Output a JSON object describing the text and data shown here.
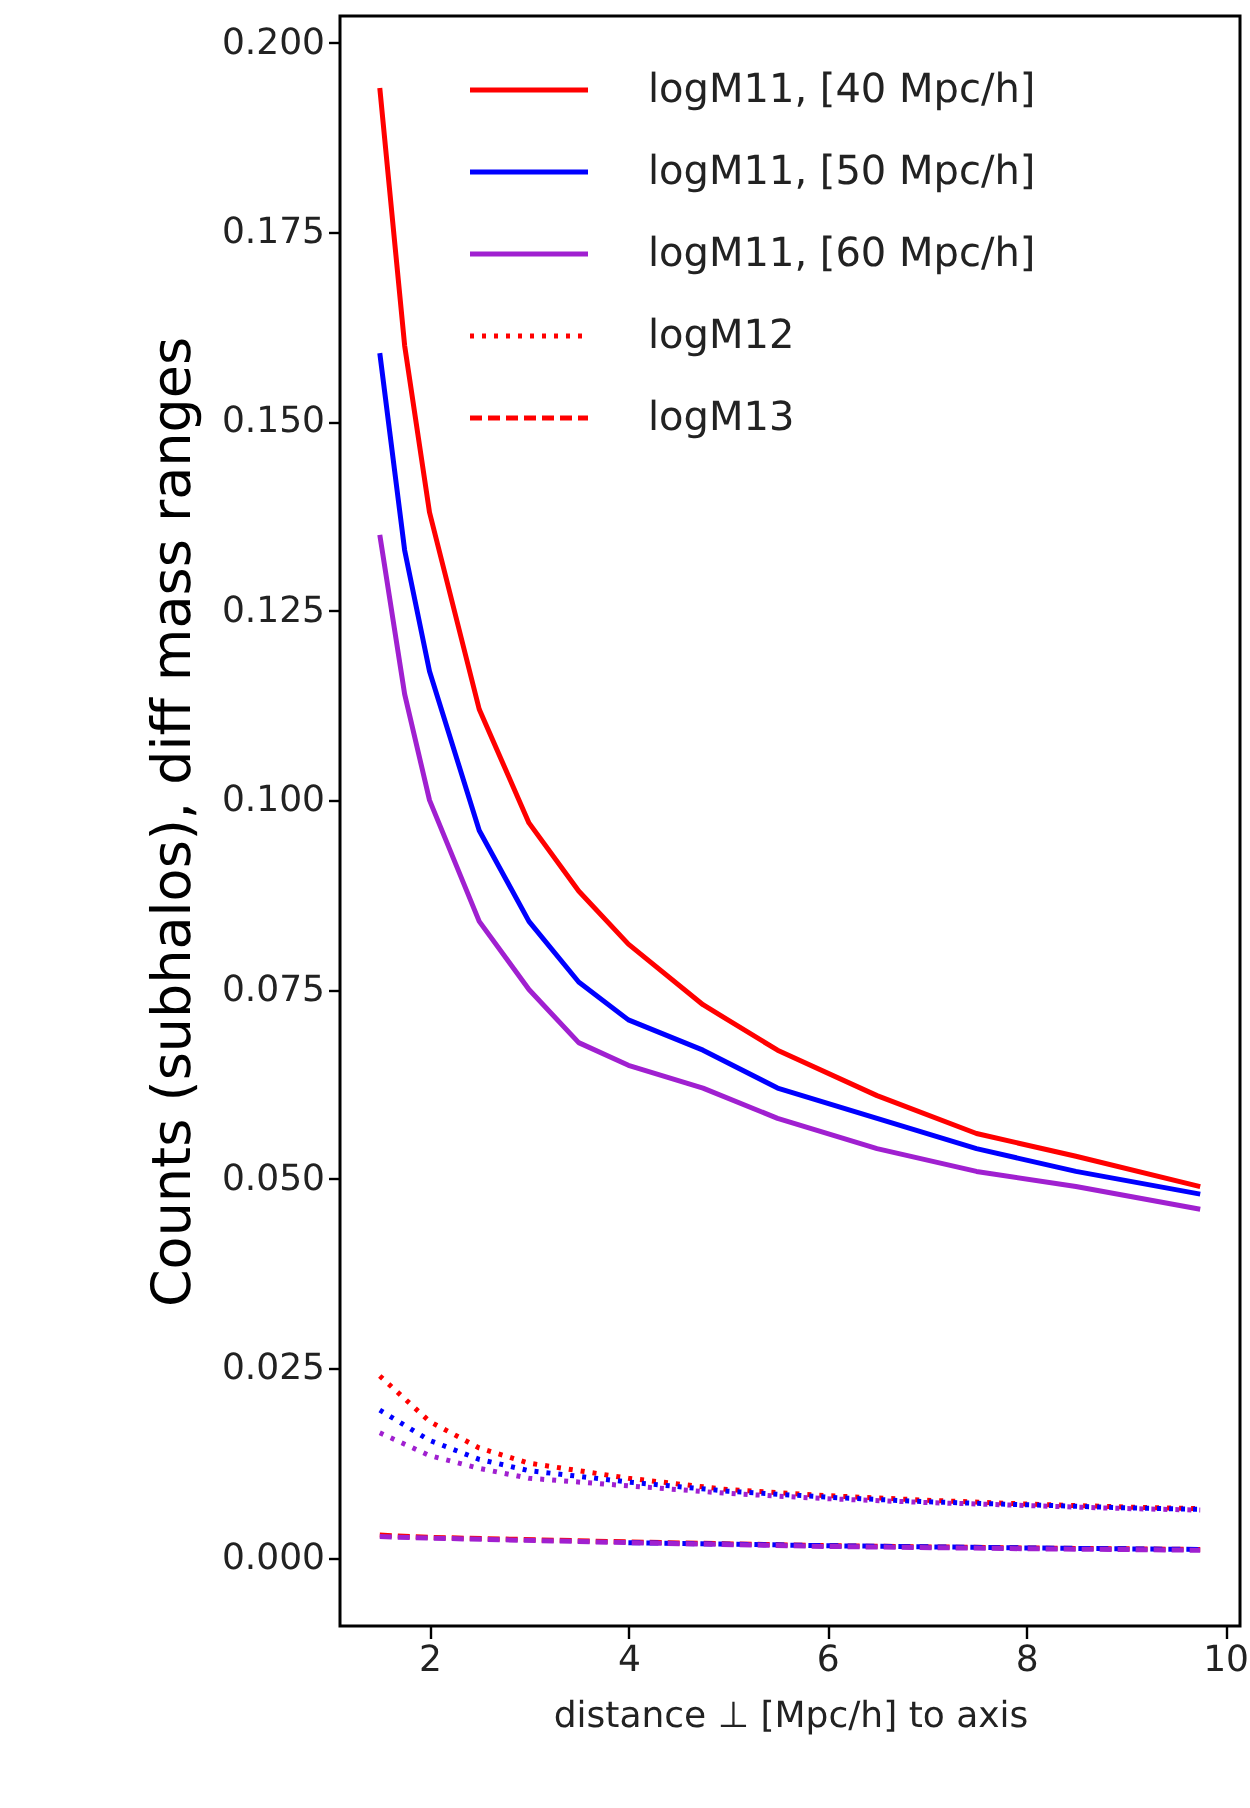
{
  "chart_data": {
    "type": "line",
    "xlabel": "distance ⊥ [Mpc/h] to axis",
    "ylabel": "Counts (subhalos), diff mass ranges",
    "xlim": [
      1.1,
      10.15
    ],
    "ylim": [
      -0.009,
      0.2035
    ],
    "xticks": [
      2,
      4,
      6,
      8,
      10
    ],
    "yticks": [
      {
        "value": 0,
        "label": "0.000"
      },
      0.025,
      {
        "value": 0.05,
        "label": "0.050"
      },
      0.075,
      {
        "value": 0.1,
        "label": "0.100"
      },
      0.125,
      {
        "value": 0.15,
        "label": "0.150"
      },
      0.175,
      {
        "value": 0.2,
        "label": "0.200"
      }
    ],
    "grid": false,
    "legend": "top right",
    "marker": "none",
    "series": [
      {
        "name": "logM11, [40 Mpc/h]",
        "color": "#ff0000",
        "line_style": "solid",
        "x": [
          1.5,
          1.75,
          2,
          2.5,
          3,
          3.5,
          4,
          4.75,
          5.5,
          6.5,
          7.5,
          8.5,
          9.75
        ],
        "values": [
          0.194,
          0.16,
          0.138,
          0.112,
          0.097,
          0.088,
          0.081,
          0.073,
          0.067,
          0.061,
          0.056,
          0.053,
          0.049
        ]
      },
      {
        "name": "logM11, [50 Mpc/h]",
        "color": "#0000ff",
        "line_style": "solid",
        "x": [
          1.5,
          1.75,
          2,
          2.5,
          3,
          3.5,
          4,
          4.75,
          5.5,
          6.5,
          7.5,
          8.5,
          9.75
        ],
        "values": [
          0.159,
          0.133,
          0.117,
          0.096,
          0.084,
          0.076,
          0.071,
          0.067,
          0.062,
          0.058,
          0.054,
          0.051,
          0.048
        ]
      },
      {
        "name": "logM11, [60 Mpc/h]",
        "color": "#a020d0",
        "line_style": "solid",
        "x": [
          1.5,
          1.75,
          2,
          2.5,
          3,
          3.5,
          4,
          4.75,
          5.5,
          6.5,
          7.5,
          8.5,
          9.75
        ],
        "values": [
          0.135,
          0.114,
          0.1,
          0.084,
          0.075,
          0.068,
          0.065,
          0.062,
          0.058,
          0.054,
          0.051,
          0.049,
          0.046
        ]
      },
      {
        "name": "logM12",
        "color": "#ff0000",
        "line_style": "dotted",
        "x": [
          1.5,
          2,
          2.5,
          3,
          4,
          5,
          6,
          7,
          8,
          9,
          9.75
        ],
        "values": [
          0.024,
          0.018,
          0.0145,
          0.0125,
          0.0105,
          0.009,
          0.0082,
          0.0076,
          0.0071,
          0.0067,
          0.0065
        ]
      },
      {
        "color": "#0000ff",
        "line_style": "dotted",
        "x": [
          1.5,
          2,
          2.5,
          3,
          4,
          5,
          6,
          7,
          8,
          9,
          9.75
        ],
        "values": [
          0.0195,
          0.0155,
          0.013,
          0.0115,
          0.01,
          0.0088,
          0.008,
          0.0074,
          0.007,
          0.0066,
          0.0064
        ]
      },
      {
        "color": "#a020d0",
        "line_style": "dotted",
        "x": [
          1.5,
          2,
          2.5,
          3,
          4,
          5,
          6,
          7,
          8,
          9,
          9.75
        ],
        "values": [
          0.0165,
          0.0135,
          0.0118,
          0.0105,
          0.0095,
          0.0085,
          0.0078,
          0.0073,
          0.0069,
          0.0065,
          0.0063
        ]
      },
      {
        "name": "logM13",
        "color": "#ff0000",
        "line_style": "dashed",
        "x": [
          1.5,
          2,
          4,
          6,
          8,
          9.75
        ],
        "values": [
          0.003,
          0.0027,
          0.0021,
          0.0016,
          0.0013,
          0.0011
        ]
      },
      {
        "color": "#0000ff",
        "line_style": "dashed",
        "x": [
          4,
          6,
          8,
          9.75
        ],
        "values": [
          0.002,
          0.0016,
          0.0013,
          0.0011
        ]
      },
      {
        "color": "#a020d0",
        "line_style": "dashed",
        "x": [
          1.5,
          2,
          4,
          6,
          8,
          9.75
        ],
        "values": [
          0.0028,
          0.0026,
          0.002,
          0.0015,
          0.0012,
          0.001
        ]
      }
    ]
  }
}
